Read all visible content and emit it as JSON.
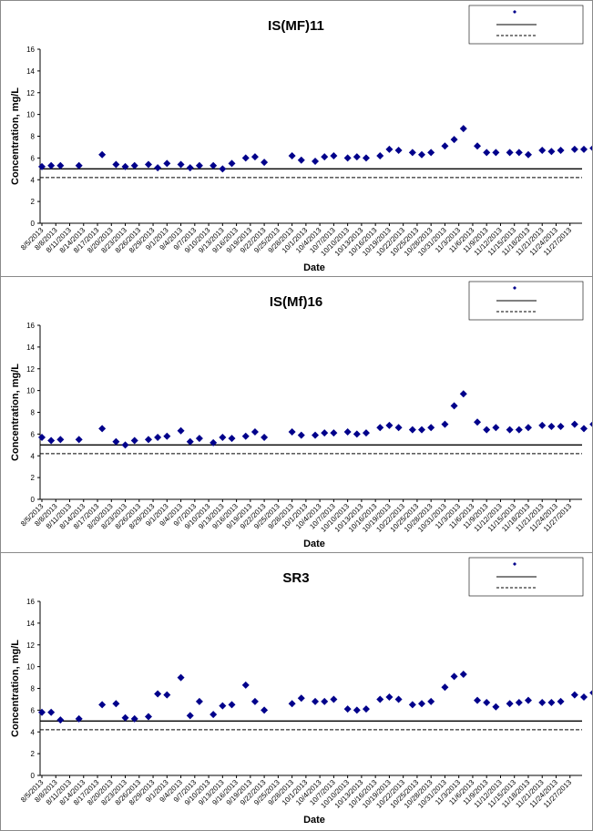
{
  "chart_data": [
    {
      "type": "scatter",
      "title": "IS(MF)11",
      "xlabel": "Date",
      "ylabel": "Concentration, mg/L",
      "ylim": [
        0,
        16
      ],
      "yticks": [
        "0",
        "2",
        "4",
        "6",
        "8",
        "10",
        "12",
        "14",
        "16"
      ],
      "x_tick_labels": [
        "8/5/2013",
        "8/8/2013",
        "8/11/2013",
        "8/14/2013",
        "8/17/2013",
        "8/20/2013",
        "8/23/2013",
        "8/26/2013",
        "8/29/2013",
        "9/1/2013",
        "9/4/2013",
        "9/7/2013",
        "9/10/2013",
        "9/13/2013",
        "9/16/2013",
        "9/19/2013",
        "9/22/2013",
        "9/25/2013",
        "9/28/2013",
        "10/1/2013",
        "10/4/2013",
        "10/7/2013",
        "10/10/2013",
        "10/13/2013",
        "10/16/2013",
        "10/19/2013",
        "10/22/2013",
        "10/25/2013",
        "10/28/2013",
        "10/31/2013",
        "11/3/2013",
        "11/6/2013",
        "11/9/2013",
        "11/12/2013",
        "11/15/2013",
        "11/18/2013",
        "11/21/2013",
        "11/24/2013",
        "11/27/2013"
      ],
      "xlim": [
        "2013-08-05",
        "2013-11-28"
      ],
      "grid": false,
      "legend_position": "top-right",
      "reference_lines": [
        {
          "y": 5.0,
          "style": "solid"
        },
        {
          "y": 4.2,
          "style": "dashed"
        }
      ],
      "series": [
        {
          "marker": "diamond",
          "color": "#00008B",
          "points": [
            {
              "x": "2013-08-05",
              "y": 5.2
            },
            {
              "x": "2013-08-07",
              "y": 5.3
            },
            {
              "x": "2013-08-09",
              "y": 5.3
            },
            {
              "x": "2013-08-13",
              "y": 5.3
            },
            {
              "x": "2013-08-18",
              "y": 6.3
            },
            {
              "x": "2013-08-21",
              "y": 5.4
            },
            {
              "x": "2013-08-23",
              "y": 5.2
            },
            {
              "x": "2013-08-25",
              "y": 5.3
            },
            {
              "x": "2013-08-28",
              "y": 5.4
            },
            {
              "x": "2013-08-30",
              "y": 5.1
            },
            {
              "x": "2013-09-01",
              "y": 5.5
            },
            {
              "x": "2013-09-04",
              "y": 5.4
            },
            {
              "x": "2013-09-06",
              "y": 5.1
            },
            {
              "x": "2013-09-08",
              "y": 5.3
            },
            {
              "x": "2013-09-11",
              "y": 5.3
            },
            {
              "x": "2013-09-13",
              "y": 5.0
            },
            {
              "x": "2013-09-15",
              "y": 5.5
            },
            {
              "x": "2013-09-18",
              "y": 6.0
            },
            {
              "x": "2013-09-20",
              "y": 6.1
            },
            {
              "x": "2013-09-22",
              "y": 5.6
            },
            {
              "x": "2013-09-28",
              "y": 6.2
            },
            {
              "x": "2013-09-30",
              "y": 5.8
            },
            {
              "x": "2013-10-03",
              "y": 5.7
            },
            {
              "x": "2013-10-05",
              "y": 6.1
            },
            {
              "x": "2013-10-07",
              "y": 6.2
            },
            {
              "x": "2013-10-10",
              "y": 6.0
            },
            {
              "x": "2013-10-12",
              "y": 6.1
            },
            {
              "x": "2013-10-14",
              "y": 6.0
            },
            {
              "x": "2013-10-17",
              "y": 6.2
            },
            {
              "x": "2013-10-19",
              "y": 6.8
            },
            {
              "x": "2013-10-21",
              "y": 6.7
            },
            {
              "x": "2013-10-24",
              "y": 6.5
            },
            {
              "x": "2013-10-26",
              "y": 6.3
            },
            {
              "x": "2013-10-28",
              "y": 6.5
            },
            {
              "x": "2013-10-31",
              "y": 7.1
            },
            {
              "x": "2013-11-02",
              "y": 7.7
            },
            {
              "x": "2013-11-04",
              "y": 8.7
            },
            {
              "x": "2013-11-07",
              "y": 7.1
            },
            {
              "x": "2013-11-09",
              "y": 6.5
            },
            {
              "x": "2013-11-11",
              "y": 6.5
            },
            {
              "x": "2013-11-14",
              "y": 6.5
            },
            {
              "x": "2013-11-16",
              "y": 6.5
            },
            {
              "x": "2013-11-18",
              "y": 6.3
            },
            {
              "x": "2013-11-21",
              "y": 6.7
            },
            {
              "x": "2013-11-23",
              "y": 6.6
            },
            {
              "x": "2013-11-25",
              "y": 6.7
            },
            {
              "x": "2013-11-28",
              "y": 6.8
            },
            {
              "x": "2013-11-30",
              "y": 6.8
            },
            {
              "x": "2013-12-02",
              "y": 6.9
            }
          ]
        }
      ]
    },
    {
      "type": "scatter",
      "title": "IS(Mf)16",
      "xlabel": "Date",
      "ylabel": "Concentration, mg/L",
      "ylim": [
        0,
        16
      ],
      "yticks": [
        "0",
        "2",
        "4",
        "6",
        "8",
        "10",
        "12",
        "14",
        "16"
      ],
      "x_tick_labels": [
        "8/5/2013",
        "8/8/2013",
        "8/11/2013",
        "8/14/2013",
        "8/17/2013",
        "8/20/2013",
        "8/23/2013",
        "8/26/2013",
        "8/29/2013",
        "9/1/2013",
        "9/4/2013",
        "9/7/2013",
        "9/10/2013",
        "9/13/2013",
        "9/16/2013",
        "9/19/2013",
        "9/22/2013",
        "9/25/2013",
        "9/28/2013",
        "10/1/2013",
        "10/4/2013",
        "10/7/2013",
        "10/10/2013",
        "10/13/2013",
        "10/16/2013",
        "10/19/2013",
        "10/22/2013",
        "10/25/2013",
        "10/28/2013",
        "10/31/2013",
        "11/3/2013",
        "11/6/2013",
        "11/9/2013",
        "11/12/2013",
        "11/15/2013",
        "11/18/2013",
        "11/21/2013",
        "11/24/2013",
        "11/27/2013"
      ],
      "xlim": [
        "2013-08-05",
        "2013-11-28"
      ],
      "grid": false,
      "legend_position": "top-right",
      "reference_lines": [
        {
          "y": 5.0,
          "style": "solid"
        },
        {
          "y": 4.2,
          "style": "dashed"
        }
      ],
      "series": [
        {
          "marker": "diamond",
          "color": "#00008B",
          "points": [
            {
              "x": "2013-08-05",
              "y": 5.7
            },
            {
              "x": "2013-08-07",
              "y": 5.4
            },
            {
              "x": "2013-08-09",
              "y": 5.5
            },
            {
              "x": "2013-08-13",
              "y": 5.5
            },
            {
              "x": "2013-08-18",
              "y": 6.5
            },
            {
              "x": "2013-08-21",
              "y": 5.3
            },
            {
              "x": "2013-08-23",
              "y": 5.0
            },
            {
              "x": "2013-08-25",
              "y": 5.4
            },
            {
              "x": "2013-08-28",
              "y": 5.5
            },
            {
              "x": "2013-08-30",
              "y": 5.7
            },
            {
              "x": "2013-09-01",
              "y": 5.8
            },
            {
              "x": "2013-09-04",
              "y": 6.3
            },
            {
              "x": "2013-09-06",
              "y": 5.3
            },
            {
              "x": "2013-09-08",
              "y": 5.6
            },
            {
              "x": "2013-09-11",
              "y": 5.2
            },
            {
              "x": "2013-09-13",
              "y": 5.7
            },
            {
              "x": "2013-09-15",
              "y": 5.6
            },
            {
              "x": "2013-09-18",
              "y": 5.8
            },
            {
              "x": "2013-09-20",
              "y": 6.2
            },
            {
              "x": "2013-09-22",
              "y": 5.7
            },
            {
              "x": "2013-09-28",
              "y": 6.2
            },
            {
              "x": "2013-09-30",
              "y": 5.9
            },
            {
              "x": "2013-10-03",
              "y": 5.9
            },
            {
              "x": "2013-10-05",
              "y": 6.1
            },
            {
              "x": "2013-10-07",
              "y": 6.1
            },
            {
              "x": "2013-10-10",
              "y": 6.2
            },
            {
              "x": "2013-10-12",
              "y": 6.0
            },
            {
              "x": "2013-10-14",
              "y": 6.1
            },
            {
              "x": "2013-10-17",
              "y": 6.6
            },
            {
              "x": "2013-10-19",
              "y": 6.8
            },
            {
              "x": "2013-10-21",
              "y": 6.6
            },
            {
              "x": "2013-10-24",
              "y": 6.4
            },
            {
              "x": "2013-10-26",
              "y": 6.4
            },
            {
              "x": "2013-10-28",
              "y": 6.6
            },
            {
              "x": "2013-10-31",
              "y": 6.9
            },
            {
              "x": "2013-11-02",
              "y": 8.6
            },
            {
              "x": "2013-11-04",
              "y": 9.7
            },
            {
              "x": "2013-11-07",
              "y": 7.1
            },
            {
              "x": "2013-11-09",
              "y": 6.4
            },
            {
              "x": "2013-11-11",
              "y": 6.6
            },
            {
              "x": "2013-11-14",
              "y": 6.4
            },
            {
              "x": "2013-11-16",
              "y": 6.4
            },
            {
              "x": "2013-11-18",
              "y": 6.6
            },
            {
              "x": "2013-11-21",
              "y": 6.8
            },
            {
              "x": "2013-11-23",
              "y": 6.7
            },
            {
              "x": "2013-11-25",
              "y": 6.7
            },
            {
              "x": "2013-11-28",
              "y": 6.9
            },
            {
              "x": "2013-11-30",
              "y": 6.5
            },
            {
              "x": "2013-12-02",
              "y": 6.9
            }
          ]
        }
      ]
    },
    {
      "type": "scatter",
      "title": "SR3",
      "xlabel": "Date",
      "ylabel": "Concentration, mg/L",
      "ylim": [
        0,
        16
      ],
      "yticks": [
        "0",
        "2",
        "4",
        "6",
        "8",
        "10",
        "12",
        "14",
        "16"
      ],
      "x_tick_labels": [
        "8/5/2013",
        "8/8/2013",
        "8/11/2013",
        "8/14/2013",
        "8/17/2013",
        "8/20/2013",
        "8/23/2013",
        "8/26/2013",
        "8/29/2013",
        "9/1/2013",
        "9/4/2013",
        "9/7/2013",
        "9/10/2013",
        "9/13/2013",
        "9/16/2013",
        "9/19/2013",
        "9/22/2013",
        "9/25/2013",
        "9/28/2013",
        "10/1/2013",
        "10/4/2013",
        "10/7/2013",
        "10/10/2013",
        "10/13/2013",
        "10/16/2013",
        "10/19/2013",
        "10/22/2013",
        "10/25/2013",
        "10/28/2013",
        "10/31/2013",
        "11/3/2013",
        "11/6/2013",
        "11/9/2013",
        "11/12/2013",
        "11/15/2013",
        "11/18/2013",
        "11/21/2013",
        "11/24/2013",
        "11/27/2013"
      ],
      "xlim": [
        "2013-08-05",
        "2013-11-28"
      ],
      "grid": false,
      "legend_position": "top-right",
      "reference_lines": [
        {
          "y": 5.0,
          "style": "solid"
        },
        {
          "y": 4.2,
          "style": "dashed"
        }
      ],
      "series": [
        {
          "marker": "diamond",
          "color": "#00008B",
          "points": [
            {
              "x": "2013-08-05",
              "y": 5.8
            },
            {
              "x": "2013-08-07",
              "y": 5.8
            },
            {
              "x": "2013-08-09",
              "y": 5.1
            },
            {
              "x": "2013-08-13",
              "y": 5.2
            },
            {
              "x": "2013-08-18",
              "y": 6.5
            },
            {
              "x": "2013-08-21",
              "y": 6.6
            },
            {
              "x": "2013-08-23",
              "y": 5.3
            },
            {
              "x": "2013-08-25",
              "y": 5.2
            },
            {
              "x": "2013-08-28",
              "y": 5.4
            },
            {
              "x": "2013-08-30",
              "y": 7.5
            },
            {
              "x": "2013-09-01",
              "y": 7.4
            },
            {
              "x": "2013-09-04",
              "y": 9.0
            },
            {
              "x": "2013-09-06",
              "y": 5.5
            },
            {
              "x": "2013-09-08",
              "y": 6.8
            },
            {
              "x": "2013-09-11",
              "y": 5.6
            },
            {
              "x": "2013-09-13",
              "y": 6.4
            },
            {
              "x": "2013-09-15",
              "y": 6.5
            },
            {
              "x": "2013-09-18",
              "y": 8.3
            },
            {
              "x": "2013-09-20",
              "y": 6.8
            },
            {
              "x": "2013-09-22",
              "y": 6.0
            },
            {
              "x": "2013-09-28",
              "y": 6.6
            },
            {
              "x": "2013-09-30",
              "y": 7.1
            },
            {
              "x": "2013-10-03",
              "y": 6.8
            },
            {
              "x": "2013-10-05",
              "y": 6.8
            },
            {
              "x": "2013-10-07",
              "y": 7.0
            },
            {
              "x": "2013-10-10",
              "y": 6.1
            },
            {
              "x": "2013-10-12",
              "y": 6.0
            },
            {
              "x": "2013-10-14",
              "y": 6.1
            },
            {
              "x": "2013-10-17",
              "y": 7.0
            },
            {
              "x": "2013-10-19",
              "y": 7.2
            },
            {
              "x": "2013-10-21",
              "y": 7.0
            },
            {
              "x": "2013-10-24",
              "y": 6.5
            },
            {
              "x": "2013-10-26",
              "y": 6.6
            },
            {
              "x": "2013-10-28",
              "y": 6.8
            },
            {
              "x": "2013-10-31",
              "y": 8.1
            },
            {
              "x": "2013-11-02",
              "y": 9.1
            },
            {
              "x": "2013-11-04",
              "y": 9.3
            },
            {
              "x": "2013-11-07",
              "y": 6.9
            },
            {
              "x": "2013-11-09",
              "y": 6.7
            },
            {
              "x": "2013-11-11",
              "y": 6.3
            },
            {
              "x": "2013-11-14",
              "y": 6.6
            },
            {
              "x": "2013-11-16",
              "y": 6.7
            },
            {
              "x": "2013-11-18",
              "y": 6.9
            },
            {
              "x": "2013-11-21",
              "y": 6.7
            },
            {
              "x": "2013-11-23",
              "y": 6.7
            },
            {
              "x": "2013-11-25",
              "y": 6.8
            },
            {
              "x": "2013-11-28",
              "y": 7.4
            },
            {
              "x": "2013-11-30",
              "y": 7.2
            },
            {
              "x": "2013-12-02",
              "y": 7.6
            }
          ]
        }
      ]
    }
  ]
}
